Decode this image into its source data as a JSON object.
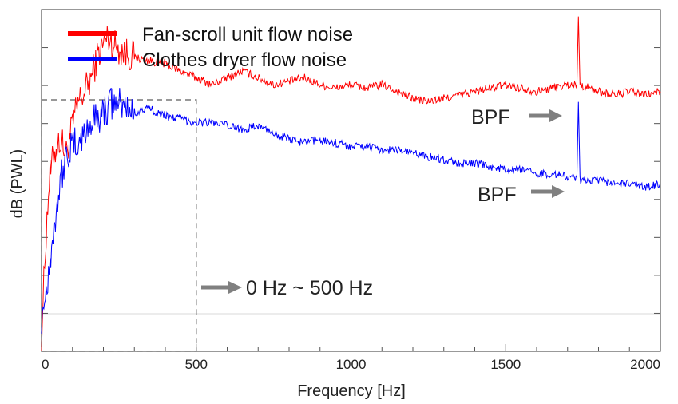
{
  "chart_data": {
    "type": "line",
    "title": "",
    "xlabel": "Frequency [Hz]",
    "ylabel": "dB (PWL)",
    "xlim": [
      0,
      2000
    ],
    "x_ticks": [
      0,
      500,
      1000,
      1500,
      2000
    ],
    "y_ticks_unlabeled": true,
    "grid": false,
    "legend_position": "top-left",
    "series": [
      {
        "name": "Fan-scroll unit flow noise",
        "color": "#ff0000",
        "points": [
          [
            0,
            0.05
          ],
          [
            15,
            0.35
          ],
          [
            25,
            0.5
          ],
          [
            40,
            0.58
          ],
          [
            60,
            0.62
          ],
          [
            80,
            0.58
          ],
          [
            100,
            0.66
          ],
          [
            120,
            0.73
          ],
          [
            140,
            0.76
          ],
          [
            160,
            0.8
          ],
          [
            180,
            0.86
          ],
          [
            200,
            0.9
          ],
          [
            215,
            0.92
          ],
          [
            230,
            0.9
          ],
          [
            260,
            0.88
          ],
          [
            300,
            0.86
          ],
          [
            350,
            0.85
          ],
          [
            400,
            0.84
          ],
          [
            450,
            0.82
          ],
          [
            500,
            0.8
          ],
          [
            550,
            0.78
          ],
          [
            600,
            0.8
          ],
          [
            650,
            0.82
          ],
          [
            700,
            0.8
          ],
          [
            750,
            0.78
          ],
          [
            800,
            0.79
          ],
          [
            850,
            0.8
          ],
          [
            900,
            0.78
          ],
          [
            950,
            0.77
          ],
          [
            1000,
            0.78
          ],
          [
            1050,
            0.77
          ],
          [
            1100,
            0.78
          ],
          [
            1150,
            0.76
          ],
          [
            1200,
            0.74
          ],
          [
            1250,
            0.73
          ],
          [
            1300,
            0.74
          ],
          [
            1350,
            0.75
          ],
          [
            1400,
            0.76
          ],
          [
            1450,
            0.77
          ],
          [
            1500,
            0.78
          ],
          [
            1550,
            0.77
          ],
          [
            1600,
            0.76
          ],
          [
            1650,
            0.77
          ],
          [
            1700,
            0.78
          ],
          [
            1730,
            0.78
          ],
          [
            1735,
            0.98
          ],
          [
            1740,
            0.78
          ],
          [
            1800,
            0.76
          ],
          [
            1850,
            0.75
          ],
          [
            1900,
            0.76
          ],
          [
            1950,
            0.75
          ],
          [
            2000,
            0.76
          ]
        ],
        "bpf_hz": 1735
      },
      {
        "name": "Clothes dryer flow noise",
        "color": "#0000ff",
        "points": [
          [
            0,
            0.1
          ],
          [
            15,
            0.18
          ],
          [
            25,
            0.25
          ],
          [
            40,
            0.36
          ],
          [
            60,
            0.5
          ],
          [
            80,
            0.57
          ],
          [
            100,
            0.6
          ],
          [
            130,
            0.62
          ],
          [
            160,
            0.67
          ],
          [
            200,
            0.7
          ],
          [
            230,
            0.73
          ],
          [
            260,
            0.72
          ],
          [
            300,
            0.7
          ],
          [
            350,
            0.71
          ],
          [
            400,
            0.69
          ],
          [
            450,
            0.68
          ],
          [
            500,
            0.67
          ],
          [
            550,
            0.67
          ],
          [
            600,
            0.66
          ],
          [
            650,
            0.65
          ],
          [
            700,
            0.66
          ],
          [
            750,
            0.64
          ],
          [
            800,
            0.62
          ],
          [
            850,
            0.61
          ],
          [
            900,
            0.62
          ],
          [
            950,
            0.61
          ],
          [
            1000,
            0.6
          ],
          [
            1050,
            0.6
          ],
          [
            1100,
            0.59
          ],
          [
            1150,
            0.59
          ],
          [
            1200,
            0.58
          ],
          [
            1250,
            0.57
          ],
          [
            1300,
            0.56
          ],
          [
            1350,
            0.55
          ],
          [
            1400,
            0.55
          ],
          [
            1450,
            0.54
          ],
          [
            1500,
            0.53
          ],
          [
            1550,
            0.53
          ],
          [
            1600,
            0.52
          ],
          [
            1650,
            0.52
          ],
          [
            1700,
            0.51
          ],
          [
            1730,
            0.51
          ],
          [
            1735,
            0.73
          ],
          [
            1740,
            0.5
          ],
          [
            1800,
            0.5
          ],
          [
            1850,
            0.49
          ],
          [
            1900,
            0.49
          ],
          [
            1950,
            0.48
          ],
          [
            2000,
            0.49
          ]
        ],
        "bpf_hz": 1735
      }
    ],
    "annotations": {
      "bpf_label": "BPF",
      "range_label": "0 Hz ~ 500 Hz",
      "highlight_range_hz": [
        0,
        500
      ]
    }
  }
}
